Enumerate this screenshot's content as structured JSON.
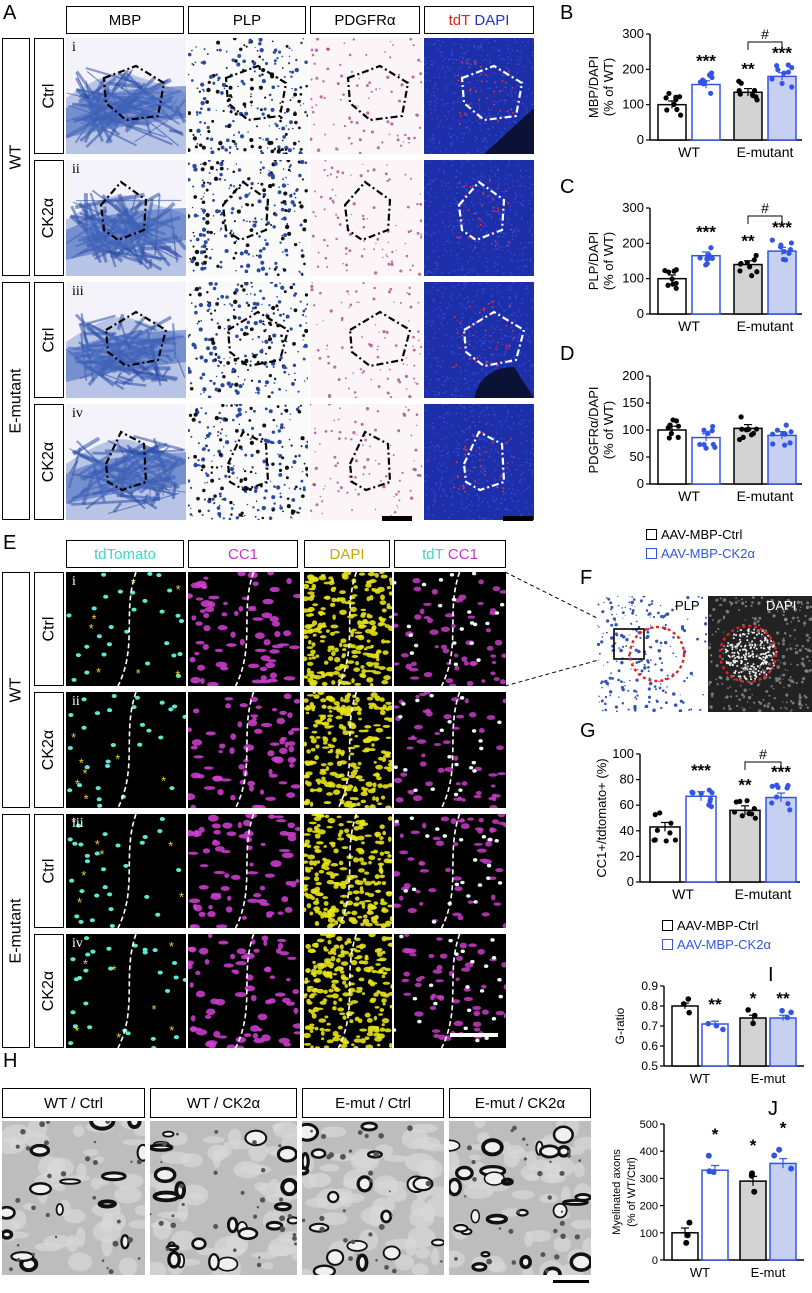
{
  "panels": {
    "A": "A",
    "B": "B",
    "C": "C",
    "D": "D",
    "E": "E",
    "F": "F",
    "G": "G",
    "H": "H",
    "I": "I",
    "J": "J"
  },
  "panelA": {
    "headers": [
      "MBP",
      "PLP",
      "PDGFRα"
    ],
    "header_tdt": "tdT",
    "header_dapi": "DAPI",
    "groups": [
      "WT",
      "E-mutant"
    ],
    "conditions": [
      "Ctrl",
      "CK2α",
      "Ctrl",
      "CK2α"
    ],
    "rows": [
      "i",
      "ii",
      "iii",
      "iv"
    ]
  },
  "panelE": {
    "headers": [
      "tdTomato",
      "CC1",
      "DAPI"
    ],
    "header_tdt": "tdT",
    "header_cc1": "CC1",
    "groups": [
      "WT",
      "E-mutant"
    ],
    "conditions": [
      "Ctrl",
      "CK2α",
      "Ctrl",
      "CK2α"
    ],
    "rows": [
      "i",
      "ii",
      "iii",
      "iv"
    ]
  },
  "panelF": {
    "left": "PLP",
    "right": "DAPI"
  },
  "panelH": {
    "labels": [
      "WT / Ctrl",
      "WT / CK2α",
      "E-mut / Ctrl",
      "E-mut / CK2α"
    ]
  },
  "legend": {
    "ctrl": "AAV-MBP-Ctrl",
    "ck2a": "AAV-MBP-CK2α",
    "ctrl_color": "#000000",
    "ck2a_color": "#3355e6",
    "ck2a_fill": "#c8d0f2",
    "emut_ctrl_fill": "#d3d3d3"
  },
  "chart_data": [
    {
      "id": "B",
      "type": "bar",
      "ylabel": "MBP/DAPI (% of WT)",
      "categories": [
        "WT",
        "E-mutant"
      ],
      "ylim": [
        0,
        300
      ],
      "yticks": [
        0,
        100,
        200,
        300
      ],
      "series": [
        {
          "name": "AAV-MBP-Ctrl",
          "values": [
            100,
            135
          ]
        },
        {
          "name": "AAV-MBP-CK2α",
          "values": [
            157,
            180
          ]
        }
      ],
      "annotations": [
        "***",
        "**",
        "***",
        "#"
      ]
    },
    {
      "id": "C",
      "type": "bar",
      "ylabel": "PLP/DAPI (% of WT)",
      "categories": [
        "WT",
        "E-mutant"
      ],
      "ylim": [
        0,
        300
      ],
      "yticks": [
        0,
        100,
        200,
        300
      ],
      "series": [
        {
          "name": "AAV-MBP-Ctrl",
          "values": [
            100,
            140
          ]
        },
        {
          "name": "AAV-MBP-CK2α",
          "values": [
            165,
            178
          ]
        }
      ],
      "annotations": [
        "***",
        "**",
        "***",
        "#"
      ]
    },
    {
      "id": "D",
      "type": "bar",
      "ylabel": "PDGFRα/DAPI (% of WT)",
      "categories": [
        "WT",
        "E-mutant"
      ],
      "ylim": [
        0,
        200
      ],
      "yticks": [
        0,
        50,
        100,
        150,
        200
      ],
      "series": [
        {
          "name": "AAV-MBP-Ctrl",
          "values": [
            100,
            103
          ]
        },
        {
          "name": "AAV-MBP-CK2α",
          "values": [
            86,
            90
          ]
        }
      ],
      "annotations": []
    },
    {
      "id": "G",
      "type": "bar",
      "ylabel": "CC1+/tdtomato+ (%)",
      "categories": [
        "WT",
        "E-mutant"
      ],
      "ylim": [
        0,
        100
      ],
      "yticks": [
        0,
        20,
        40,
        60,
        80,
        100
      ],
      "series": [
        {
          "name": "AAV-MBP-Ctrl",
          "values": [
            43,
            56
          ]
        },
        {
          "name": "AAV-MBP-CK2α",
          "values": [
            67,
            66
          ]
        }
      ],
      "annotations": [
        "***",
        "**",
        "***",
        "#"
      ]
    },
    {
      "id": "I",
      "type": "bar",
      "ylabel": "G-ratio",
      "categories": [
        "WT",
        "E-mut"
      ],
      "ylim": [
        0.5,
        0.9
      ],
      "yticks": [
        0.5,
        0.6,
        0.7,
        0.8,
        0.9
      ],
      "series": [
        {
          "name": "AAV-MBP-Ctrl",
          "values": [
            0.8,
            0.74
          ]
        },
        {
          "name": "AAV-MBP-CK2α",
          "values": [
            0.71,
            0.74
          ]
        }
      ],
      "annotations": [
        "**",
        "*",
        "**"
      ]
    },
    {
      "id": "J",
      "type": "bar",
      "ylabel": "Myelinated axons (% of WT/Ctrl)",
      "categories": [
        "WT",
        "E-mut"
      ],
      "ylim": [
        0,
        500
      ],
      "yticks": [
        0,
        100,
        200,
        300,
        400,
        500
      ],
      "series": [
        {
          "name": "AAV-MBP-Ctrl",
          "values": [
            100,
            290
          ]
        },
        {
          "name": "AAV-MBP-CK2α",
          "values": [
            330,
            355
          ]
        }
      ],
      "annotations": [
        "*",
        "*",
        "*"
      ]
    }
  ]
}
